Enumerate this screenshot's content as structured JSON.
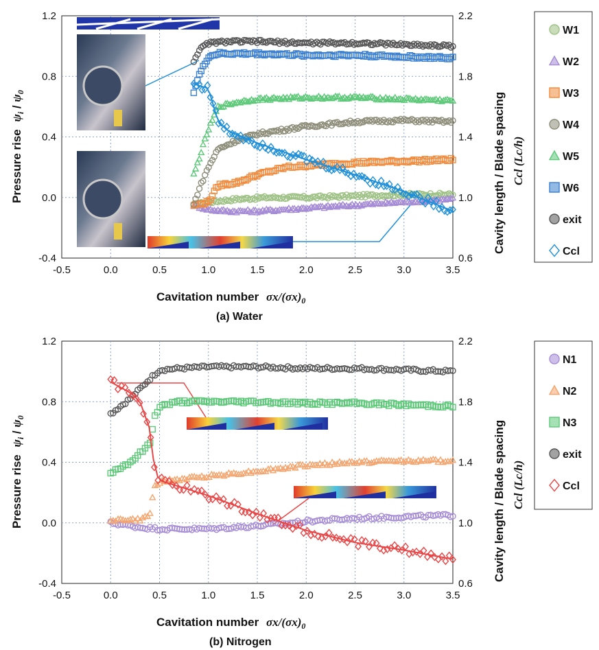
{
  "chart_data": [
    {
      "type": "scatter",
      "caption": "(a) Water",
      "xlabel": "Cavitation number",
      "xlabel_math": "σx/(σx)",
      "xlabel_sub": "0",
      "ylabel_left": "Pressure rise",
      "ylabel_left_math": "ψ",
      "ylabel_left_sub1": "i",
      "ylabel_left_sub2": "0",
      "ylabel_right": "Cavity length / Blade spacing",
      "ylabel_right_math": "Ccl (Lc/h)",
      "xlim": [
        -0.5,
        3.5
      ],
      "ylim_left": [
        -0.4,
        1.2
      ],
      "ylim_right": [
        0.6,
        2.2
      ],
      "x_ticks": [
        "-0.5",
        "0.0",
        "0.5",
        "1.0",
        "1.5",
        "2.0",
        "2.5",
        "3.0",
        "3.5"
      ],
      "y_left_ticks": [
        "1.2",
        "0.8",
        "0.4",
        "0.0",
        "-0.4"
      ],
      "y_right_ticks": [
        "2.2",
        "1.8",
        "1.4",
        "1.0",
        "0.6"
      ],
      "grid": true,
      "legend_position": "right",
      "series": [
        {
          "name": "W1",
          "marker": "circle",
          "color": "#9dc183",
          "axis": "left",
          "points": [
            [
              0.85,
              -0.05
            ],
            [
              1.0,
              -0.03
            ],
            [
              1.3,
              -0.01
            ],
            [
              1.6,
              0.0
            ],
            [
              2.0,
              0.0
            ],
            [
              2.5,
              0.01
            ],
            [
              3.0,
              0.02
            ],
            [
              3.5,
              0.02
            ]
          ]
        },
        {
          "name": "W2",
          "marker": "triangle",
          "color": "#a58bd6",
          "axis": "left",
          "points": [
            [
              0.85,
              -0.05
            ],
            [
              1.0,
              -0.08
            ],
            [
              1.2,
              -0.09
            ],
            [
              1.5,
              -0.09
            ],
            [
              2.0,
              -0.07
            ],
            [
              2.5,
              -0.05
            ],
            [
              3.0,
              -0.03
            ],
            [
              3.5,
              -0.01
            ]
          ]
        },
        {
          "name": "W3",
          "marker": "square",
          "color": "#f08a3c",
          "axis": "left",
          "points": [
            [
              0.85,
              -0.05
            ],
            [
              1.0,
              -0.03
            ],
            [
              1.1,
              0.08
            ],
            [
              1.3,
              0.1
            ],
            [
              1.5,
              0.15
            ],
            [
              1.8,
              0.2
            ],
            [
              2.0,
              0.21
            ],
            [
              2.5,
              0.23
            ],
            [
              3.0,
              0.24
            ],
            [
              3.5,
              0.25
            ]
          ]
        },
        {
          "name": "W4",
          "marker": "circle",
          "color": "#8c8c78",
          "axis": "left",
          "points": [
            [
              0.85,
              -0.05
            ],
            [
              0.9,
              0.05
            ],
            [
              1.0,
              0.2
            ],
            [
              1.1,
              0.32
            ],
            [
              1.3,
              0.38
            ],
            [
              1.5,
              0.42
            ],
            [
              2.0,
              0.47
            ],
            [
              2.5,
              0.5
            ],
            [
              3.0,
              0.51
            ],
            [
              3.5,
              0.5
            ]
          ]
        },
        {
          "name": "W5",
          "marker": "triangle",
          "color": "#5cc878",
          "axis": "left",
          "points": [
            [
              0.85,
              0.15
            ],
            [
              0.9,
              0.25
            ],
            [
              1.0,
              0.45
            ],
            [
              1.1,
              0.6
            ],
            [
              1.3,
              0.63
            ],
            [
              1.5,
              0.65
            ],
            [
              2.0,
              0.66
            ],
            [
              2.5,
              0.66
            ],
            [
              3.0,
              0.65
            ],
            [
              3.5,
              0.64
            ]
          ]
        },
        {
          "name": "W6",
          "marker": "square",
          "color": "#3a7fd0",
          "axis": "left",
          "points": [
            [
              0.85,
              0.7
            ],
            [
              0.9,
              0.8
            ],
            [
              1.0,
              0.93
            ],
            [
              1.1,
              0.95
            ],
            [
              1.5,
              0.95
            ],
            [
              2.0,
              0.94
            ],
            [
              2.5,
              0.94
            ],
            [
              3.0,
              0.93
            ],
            [
              3.5,
              0.92
            ]
          ]
        },
        {
          "name": "exit",
          "marker": "circle",
          "color": "#555555",
          "axis": "left",
          "points": [
            [
              0.85,
              0.9
            ],
            [
              0.9,
              0.97
            ],
            [
              1.0,
              1.02
            ],
            [
              1.2,
              1.03
            ],
            [
              1.5,
              1.03
            ],
            [
              2.0,
              1.02
            ],
            [
              2.5,
              1.02
            ],
            [
              3.0,
              1.01
            ],
            [
              3.5,
              1.0
            ]
          ]
        },
        {
          "name": "Ccl",
          "marker": "diamond",
          "color": "#1f8fd8",
          "axis": "right",
          "points": [
            [
              0.85,
              1.75
            ],
            [
              1.0,
              1.72
            ],
            [
              1.1,
              1.5
            ],
            [
              1.2,
              1.44
            ],
            [
              1.5,
              1.36
            ],
            [
              2.0,
              1.25
            ],
            [
              2.5,
              1.15
            ],
            [
              3.0,
              1.04
            ],
            [
              3.5,
              0.91
            ]
          ]
        }
      ]
    },
    {
      "type": "scatter",
      "caption": "(b) Nitrogen",
      "xlabel": "Cavitation number",
      "xlabel_math": "σx/(σx)",
      "xlabel_sub": "0",
      "ylabel_left": "Pressure rise",
      "ylabel_left_math": "ψ",
      "ylabel_left_sub1": "i",
      "ylabel_left_sub2": "0",
      "ylabel_right": "Cavity length / Blade spacing",
      "ylabel_right_math": "Ccl (Lc/h)",
      "xlim": [
        -0.5,
        3.5
      ],
      "ylim_left": [
        -0.4,
        1.2
      ],
      "ylim_right": [
        0.6,
        2.2
      ],
      "x_ticks": [
        "-0.5",
        "0.0",
        "0.5",
        "1.0",
        "1.5",
        "2.0",
        "2.5",
        "3.0",
        "3.5"
      ],
      "y_left_ticks": [
        "1.2",
        "0.8",
        "0.4",
        "0.0",
        "-0.4"
      ],
      "y_right_ticks": [
        "2.2",
        "1.8",
        "1.4",
        "1.0",
        "0.6"
      ],
      "grid": true,
      "legend_position": "right",
      "series": [
        {
          "name": "N1",
          "marker": "circle",
          "color": "#a58bd6",
          "axis": "left",
          "points": [
            [
              0.0,
              0.0
            ],
            [
              0.3,
              -0.03
            ],
            [
              0.5,
              -0.04
            ],
            [
              1.0,
              -0.04
            ],
            [
              1.5,
              -0.02
            ],
            [
              2.0,
              0.01
            ],
            [
              2.5,
              0.03
            ],
            [
              3.0,
              0.04
            ],
            [
              3.5,
              0.05
            ]
          ]
        },
        {
          "name": "N2",
          "marker": "triangle",
          "color": "#f4a46c",
          "axis": "left",
          "points": [
            [
              0.0,
              0.02
            ],
            [
              0.3,
              0.02
            ],
            [
              0.4,
              0.05
            ],
            [
              0.45,
              0.25
            ],
            [
              0.5,
              0.27
            ],
            [
              1.0,
              0.31
            ],
            [
              1.5,
              0.34
            ],
            [
              2.0,
              0.38
            ],
            [
              2.5,
              0.4
            ],
            [
              3.0,
              0.41
            ],
            [
              3.5,
              0.41
            ]
          ]
        },
        {
          "name": "N3",
          "marker": "square",
          "color": "#5cc878",
          "axis": "left",
          "points": [
            [
              0.0,
              0.33
            ],
            [
              0.2,
              0.4
            ],
            [
              0.4,
              0.52
            ],
            [
              0.45,
              0.7
            ],
            [
              0.5,
              0.77
            ],
            [
              0.7,
              0.8
            ],
            [
              1.0,
              0.8
            ],
            [
              1.5,
              0.8
            ],
            [
              2.0,
              0.79
            ],
            [
              2.5,
              0.79
            ],
            [
              3.0,
              0.78
            ],
            [
              3.5,
              0.77
            ]
          ]
        },
        {
          "name": "exit",
          "marker": "circle",
          "color": "#555555",
          "axis": "left",
          "points": [
            [
              0.0,
              0.72
            ],
            [
              0.2,
              0.82
            ],
            [
              0.4,
              0.95
            ],
            [
              0.5,
              1.01
            ],
            [
              0.7,
              1.02
            ],
            [
              1.0,
              1.03
            ],
            [
              1.5,
              1.03
            ],
            [
              2.0,
              1.02
            ],
            [
              2.5,
              1.02
            ],
            [
              3.0,
              1.01
            ],
            [
              3.5,
              1.0
            ]
          ]
        },
        {
          "name": "Ccl",
          "marker": "diamond",
          "color": "#e84646",
          "axis": "right",
          "points": [
            [
              0.0,
              1.93
            ],
            [
              0.2,
              1.86
            ],
            [
              0.3,
              1.8
            ],
            [
              0.4,
              1.62
            ],
            [
              0.45,
              1.35
            ],
            [
              0.5,
              1.28
            ],
            [
              1.0,
              1.18
            ],
            [
              1.5,
              1.06
            ],
            [
              2.0,
              0.95
            ],
            [
              2.5,
              0.87
            ],
            [
              3.0,
              0.82
            ],
            [
              3.5,
              0.76
            ]
          ]
        }
      ]
    }
  ]
}
